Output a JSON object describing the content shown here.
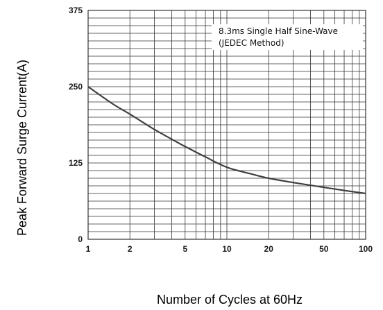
{
  "chart_data": {
    "type": "line",
    "xlabel": "Number of Cycles at 60Hz",
    "ylabel": "Peak Forward Surge Current(A)",
    "x_scale": "log",
    "xlim": [
      1,
      100
    ],
    "ylim": [
      0,
      375
    ],
    "x_ticks": [
      1,
      2,
      5,
      10,
      20,
      50,
      100
    ],
    "x_tick_labels": [
      "1",
      "2",
      "5",
      "10",
      "20",
      "50",
      "100"
    ],
    "y_ticks": [
      0,
      125,
      250,
      375
    ],
    "y_tick_labels": [
      "0",
      "125",
      "250",
      "375"
    ],
    "grid": true,
    "annotation": [
      "8.3ms Single Half Sine-Wave",
      "(JEDEC Method)"
    ],
    "annotation_position": "top-right",
    "series": [
      {
        "x": [
          1,
          1.5,
          2,
          3,
          4,
          5,
          7,
          10,
          15,
          20,
          30,
          50,
          70,
          100
        ],
        "y": [
          250,
          222,
          205,
          180,
          164,
          152,
          135,
          118,
          107,
          100,
          93,
          85,
          80,
          75
        ]
      }
    ]
  },
  "colors": {
    "curve": "#404040",
    "grid": "#333333",
    "background": "#ffffff"
  }
}
